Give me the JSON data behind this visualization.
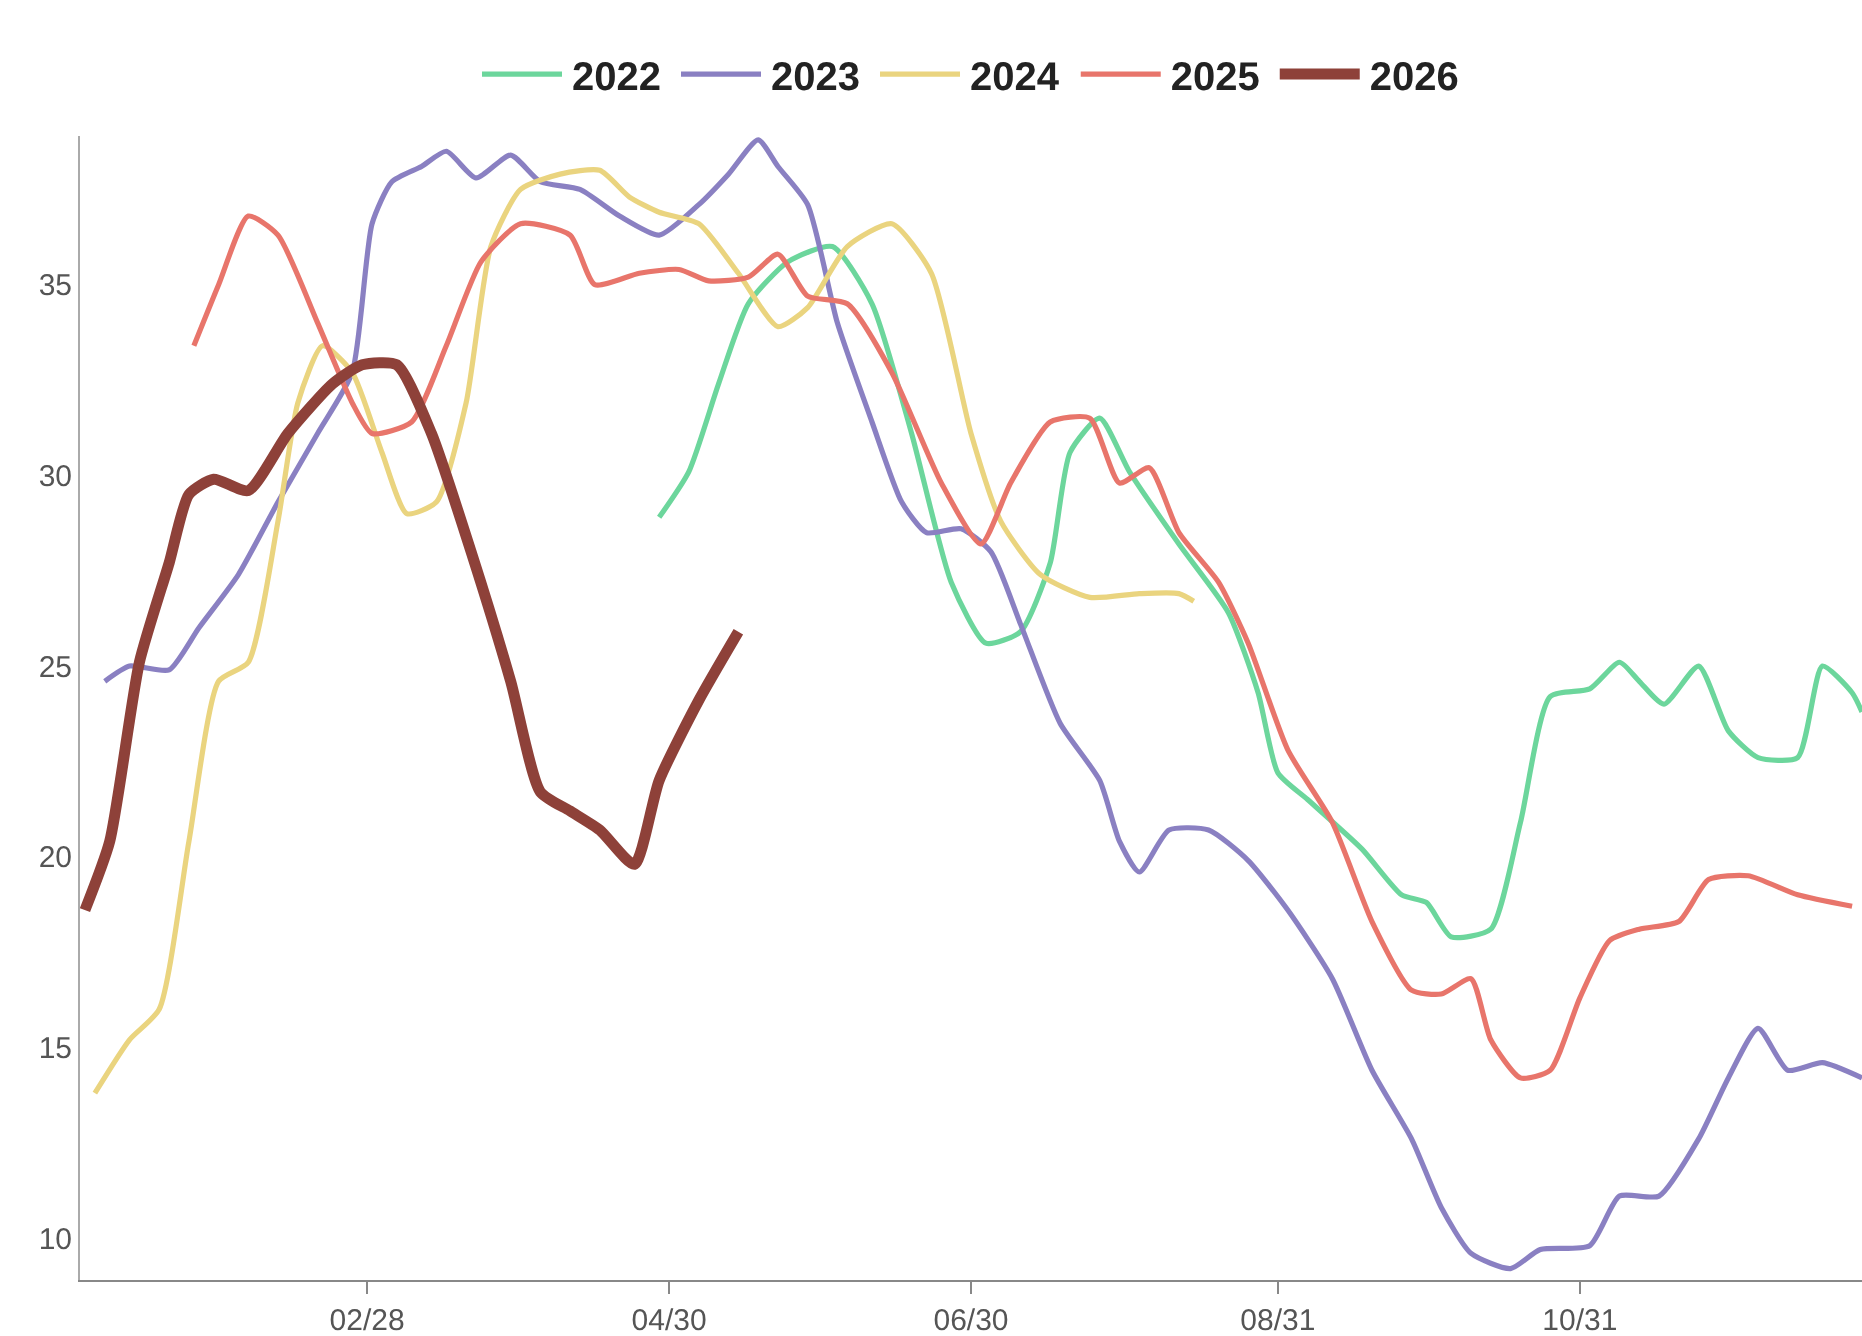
{
  "chart_data": {
    "type": "line",
    "xlim": [
      "--01-01",
      "--12-27"
    ],
    "ylim": [
      8.9,
      38.9
    ],
    "xticks": [
      {
        "value": "--02-28",
        "label": "02/28"
      },
      {
        "value": "--04-30",
        "label": "04/30"
      },
      {
        "value": "--06-30",
        "label": "06/30"
      },
      {
        "value": "--08-31",
        "label": "08/31"
      },
      {
        "value": "--10-31",
        "label": "10/31"
      }
    ],
    "yticks": [
      10,
      15,
      20,
      25,
      30,
      35
    ],
    "grid": false,
    "legend": "top",
    "marker": "none",
    "line_style": "solid",
    "series": [
      {
        "name": "2022",
        "color": "#6cd69c",
        "x": [
          "--04-28",
          "--05-04",
          "--05-10",
          "--05-16",
          "--05-24",
          "--06-02",
          "--06-10",
          "--06-18",
          "--06-26",
          "--07-03",
          "--07-10",
          "--07-16",
          "--07-20",
          "--07-26",
          "--08-01",
          "--08-11",
          "--08-21",
          "--08-27",
          "--08-31",
          "--09-06",
          "--09-17",
          "--09-25",
          "--09-30",
          "--10-05",
          "--10-13",
          "--10-19",
          "--10-25",
          "--11-02",
          "--11-08",
          "--11-12",
          "--11-17",
          "--11-24",
          "--11-30",
          "--12-06",
          "--12-14",
          "--12-19",
          "--12-25",
          "--12-27"
        ],
        "values": [
          28.9,
          30.1,
          32.4,
          34.5,
          35.6,
          36.0,
          34.5,
          31.1,
          27.2,
          25.6,
          25.9,
          27.7,
          30.6,
          31.5,
          30.1,
          28.2,
          26.4,
          24.3,
          22.2,
          21.5,
          20.2,
          19.0,
          18.8,
          17.9,
          18.1,
          20.9,
          24.2,
          24.4,
          25.1,
          24.6,
          24.0,
          25.0,
          23.3,
          22.6,
          22.6,
          25.0,
          24.3,
          23.8
        ]
      },
      {
        "name": "2023",
        "color": "#8a80c2",
        "x": [
          "--01-06",
          "--01-11",
          "--01-19",
          "--01-25",
          "--02-02",
          "--02-10",
          "--02-18",
          "--02-25",
          "--03-01",
          "--03-05",
          "--03-11",
          "--03-16",
          "--03-22",
          "--03-29",
          "--04-04",
          "--04-12",
          "--04-20",
          "--04-28",
          "--05-06",
          "--05-12",
          "--05-18",
          "--05-22",
          "--05-28",
          "--06-03",
          "--06-10",
          "--06-16",
          "--06-21",
          "--06-28",
          "--07-04",
          "--07-10",
          "--07-18",
          "--07-26",
          "--07-30",
          "--08-03",
          "--08-09",
          "--08-17",
          "--08-25",
          "--09-02",
          "--09-11",
          "--09-19",
          "--09-27",
          "--10-03",
          "--10-09",
          "--10-17",
          "--10-23",
          "--11-02",
          "--11-08",
          "--11-16",
          "--11-24",
          "--11-30",
          "--12-06",
          "--12-12",
          "--12-19",
          "--12-27"
        ],
        "values": [
          24.6,
          25.0,
          24.9,
          26.0,
          27.4,
          29.3,
          31.1,
          32.7,
          36.6,
          37.7,
          38.1,
          38.5,
          37.8,
          38.4,
          37.7,
          37.5,
          36.8,
          36.3,
          37.1,
          37.9,
          38.8,
          38.1,
          37.1,
          34.0,
          31.4,
          29.3,
          28.5,
          28.6,
          28.0,
          26.1,
          23.5,
          22.0,
          20.4,
          19.6,
          20.7,
          20.7,
          19.9,
          18.6,
          16.8,
          14.4,
          12.6,
          10.8,
          9.6,
          9.2,
          9.7,
          9.8,
          11.1,
          11.1,
          12.6,
          14.2,
          15.5,
          14.4,
          14.6,
          14.2
        ]
      },
      {
        "name": "2024",
        "color": "#ead47f",
        "x": [
          "--01-04",
          "--01-11",
          "--01-17",
          "--01-23",
          "--01-29",
          "--02-04",
          "--02-10",
          "--02-14",
          "--02-19",
          "--02-25",
          "--03-03",
          "--03-08",
          "--03-14",
          "--03-20",
          "--03-25",
          "--03-31",
          "--04-08",
          "--04-16",
          "--04-22",
          "--04-28",
          "--05-06",
          "--05-14",
          "--05-22",
          "--05-28",
          "--06-05",
          "--06-14",
          "--06-22",
          "--06-30",
          "--07-06",
          "--07-14",
          "--07-24",
          "--08-03",
          "--08-11",
          "--08-14"
        ],
        "values": [
          13.8,
          15.2,
          16.0,
          20.4,
          24.6,
          25.1,
          28.8,
          31.9,
          33.4,
          32.7,
          30.6,
          29.0,
          29.3,
          31.9,
          36.0,
          37.5,
          37.9,
          38.0,
          37.3,
          36.9,
          36.6,
          35.3,
          33.9,
          34.4,
          36.0,
          36.6,
          35.3,
          31.1,
          28.8,
          27.4,
          26.8,
          26.9,
          26.9,
          26.7
        ]
      },
      {
        "name": "2025",
        "color": "#e8756b",
        "x": [
          "--01-24",
          "--01-29",
          "--02-04",
          "--02-10",
          "--02-18",
          "--02-25",
          "--03-01",
          "--03-09",
          "--03-16",
          "--03-23",
          "--03-31",
          "--04-10",
          "--04-15",
          "--04-24",
          "--05-02",
          "--05-08",
          "--05-16",
          "--05-22",
          "--05-28",
          "--06-05",
          "--06-14",
          "--06-24",
          "--07-02",
          "--07-08",
          "--07-16",
          "--07-24",
          "--07-30",
          "--08-05",
          "--08-11",
          "--08-19",
          "--08-25",
          "--09-02",
          "--09-11",
          "--09-19",
          "--09-27",
          "--10-03",
          "--10-09",
          "--10-13",
          "--10-19",
          "--10-25",
          "--10-31",
          "--11-06",
          "--11-12",
          "--11-20",
          "--11-26",
          "--12-04",
          "--12-14",
          "--12-25"
        ],
        "values": [
          33.4,
          35.0,
          36.8,
          36.3,
          34.0,
          31.9,
          31.1,
          31.4,
          33.4,
          35.6,
          36.6,
          36.3,
          35.0,
          35.3,
          35.4,
          35.1,
          35.2,
          35.8,
          34.7,
          34.5,
          32.7,
          29.8,
          28.2,
          29.8,
          31.4,
          31.5,
          29.8,
          30.2,
          28.5,
          27.2,
          25.6,
          22.8,
          20.9,
          18.3,
          16.5,
          16.4,
          16.8,
          15.2,
          14.2,
          14.4,
          16.3,
          17.8,
          18.1,
          18.3,
          19.4,
          19.5,
          19.0,
          18.7
        ]
      },
      {
        "name": "2026",
        "color": "#8e4139",
        "x": [
          "--01-02",
          "--01-07",
          "--01-13",
          "--01-19",
          "--01-23",
          "--01-28",
          "--02-04",
          "--02-12",
          "--02-21",
          "--02-27",
          "--03-06",
          "--03-13",
          "--03-21",
          "--03-29",
          "--04-04",
          "--04-10",
          "--04-16",
          "--04-23",
          "--04-28",
          "--05-06",
          "--05-14"
        ],
        "values": [
          18.6,
          20.4,
          25.1,
          27.7,
          29.5,
          29.9,
          29.6,
          31.1,
          32.4,
          32.9,
          32.9,
          31.1,
          28.0,
          24.6,
          21.7,
          21.2,
          20.7,
          19.8,
          22.0,
          24.1,
          25.9
        ]
      }
    ]
  }
}
